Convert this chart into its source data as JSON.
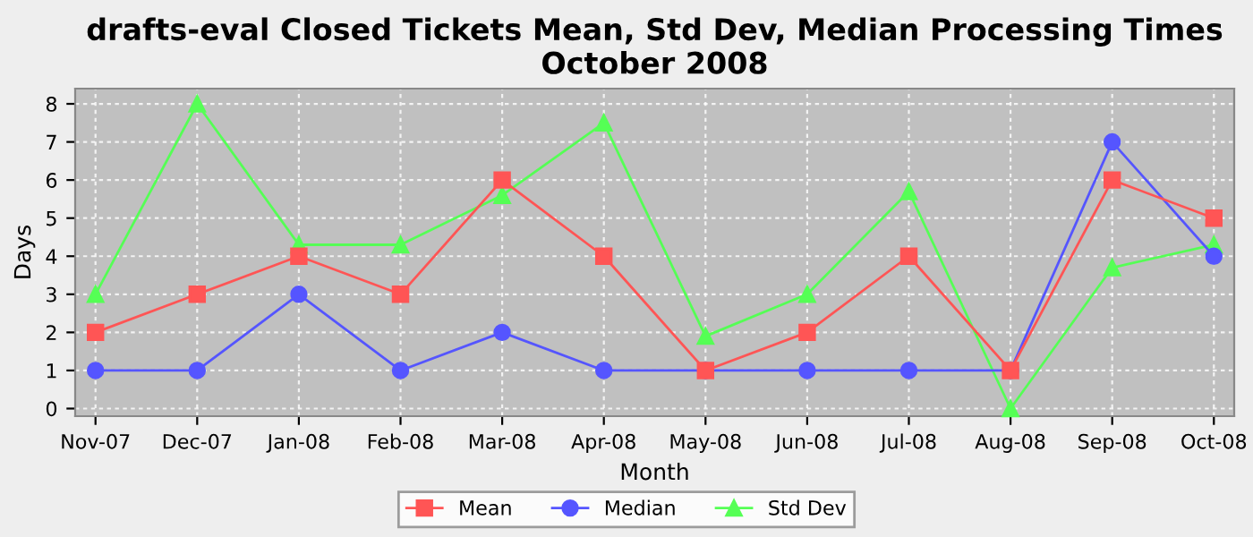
{
  "chart_data": {
    "type": "line",
    "title": "drafts-eval Closed Tickets Mean, Std Dev, Median Processing Times\nOctober 2008",
    "xlabel": "Month",
    "ylabel": "Days",
    "categories": [
      "Nov-07",
      "Dec-07",
      "Jan-08",
      "Feb-08",
      "Mar-08",
      "Apr-08",
      "May-08",
      "Jun-08",
      "Jul-08",
      "Aug-08",
      "Sep-08",
      "Oct-08"
    ],
    "series": [
      {
        "name": "Mean",
        "color": "#ff5555",
        "marker": "square",
        "values": [
          2,
          3,
          4,
          3,
          6,
          4,
          1,
          2,
          4,
          1,
          6,
          5
        ]
      },
      {
        "name": "Median",
        "color": "#5555ff",
        "marker": "circle",
        "values": [
          1,
          1,
          3,
          1,
          2,
          1,
          1,
          1,
          1,
          1,
          7,
          4
        ]
      },
      {
        "name": "Std Dev",
        "color": "#55ff55",
        "marker": "triangle",
        "values": [
          3,
          8,
          4.3,
          4.3,
          5.6,
          7.5,
          1.9,
          3.0,
          5.7,
          0,
          3.7,
          4.3
        ]
      }
    ],
    "ylim": [
      -0.2,
      8.4
    ],
    "yticks": [
      0,
      1,
      2,
      3,
      4,
      5,
      6,
      7,
      8
    ],
    "grid": true,
    "legend": "bottom",
    "line_style": "solid"
  }
}
